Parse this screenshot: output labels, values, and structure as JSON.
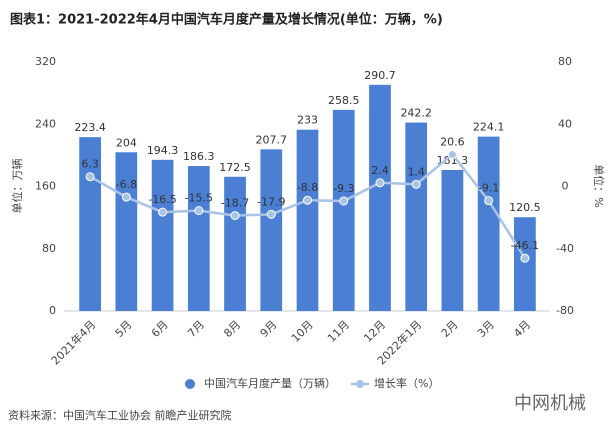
{
  "chart_data": {
    "type": "bar-line",
    "title": "图表1：2021-2022年4月中国汽车月度产量及增长情况(单位：万辆，%)",
    "y_label": "单位：万辆",
    "y2_label": "单位：%",
    "categories": [
      "2021年4月",
      "5月",
      "6月",
      "7月",
      "8月",
      "9月",
      "10月",
      "11月",
      "12月",
      "2022年1月",
      "2月",
      "3月",
      "4月"
    ],
    "series": [
      {
        "name": "中国汽车月度产量（万辆）",
        "type": "bar",
        "color": "#4a7fd4",
        "values": [
          223.4,
          204,
          194.3,
          186.3,
          172.5,
          207.7,
          233,
          258.5,
          290.7,
          242.2,
          181.3,
          224.1,
          120.5
        ]
      },
      {
        "name": "增长率（%）",
        "type": "line",
        "axis": "y2",
        "color": "#a9c3e6",
        "values": [
          6.3,
          -6.8,
          -16.5,
          -15.5,
          -18.7,
          -17.9,
          -8.8,
          -9.3,
          2.4,
          1.4,
          20.6,
          -9.1,
          -46.1
        ]
      }
    ],
    "ylim": [
      0,
      320
    ],
    "yticks": [
      0,
      80,
      160,
      240,
      320
    ],
    "y2lim": [
      -80,
      80
    ],
    "y2ticks": [
      -80,
      -40,
      0,
      40,
      80
    ],
    "grid": false,
    "source": "资料来源：中国汽车工业协会 前瞻产业研究院",
    "watermark": "中网机械"
  }
}
